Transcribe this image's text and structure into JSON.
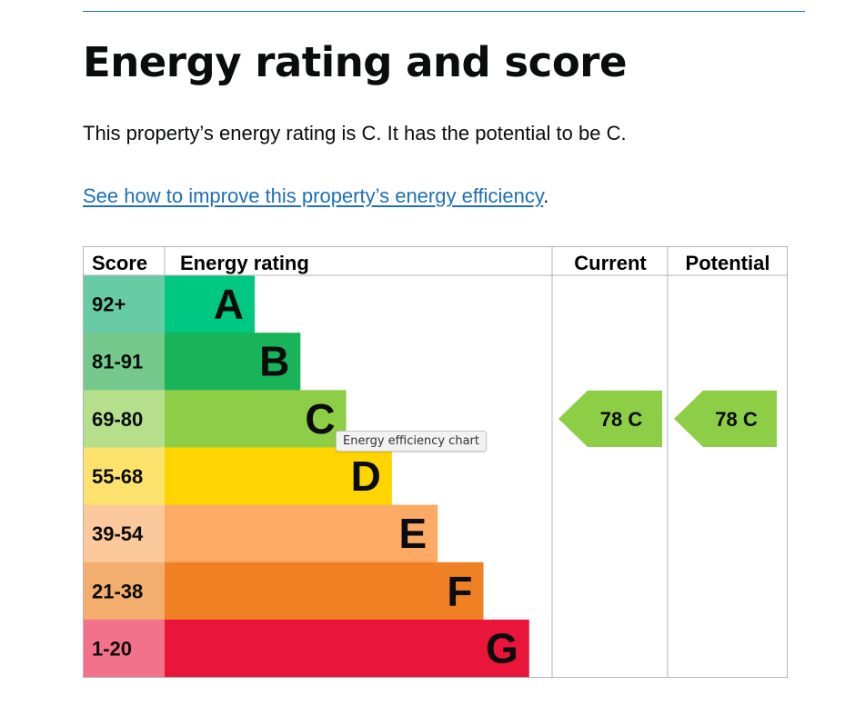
{
  "page": {
    "heading": "Energy rating and score",
    "summary": "This property’s energy rating is C. It has the potential to be C.",
    "improve_link": "See how to improve this property’s energy efficiency",
    "improve_suffix": "."
  },
  "chart": {
    "tooltip": "Energy efficiency chart",
    "headers": {
      "score": "Score",
      "rating": "Energy rating",
      "current": "Current",
      "potential": "Potential"
    },
    "bands": [
      {
        "range": "92+",
        "letter": "A",
        "color": "#00c781",
        "score_bg": "#67cba5"
      },
      {
        "range": "81-91",
        "letter": "B",
        "color": "#19b459",
        "score_bg": "#75c98d"
      },
      {
        "range": "69-80",
        "letter": "C",
        "color": "#8dce46",
        "score_bg": "#b5df8b"
      },
      {
        "range": "55-68",
        "letter": "D",
        "color": "#ffd500",
        "score_bg": "#fde36d"
      },
      {
        "range": "39-54",
        "letter": "E",
        "color": "#fcaa65",
        "score_bg": "#fbc99b"
      },
      {
        "range": "21-38",
        "letter": "F",
        "color": "#ef8023",
        "score_bg": "#f3ad6d"
      },
      {
        "range": "1-20",
        "letter": "G",
        "color": "#e9153b",
        "score_bg": "#f2728c"
      }
    ],
    "current": {
      "label": "78 C",
      "band": "C",
      "score": 78,
      "color": "#8dce46"
    },
    "potential": {
      "label": "78 C",
      "band": "C",
      "score": 78,
      "color": "#8dce46"
    }
  }
}
